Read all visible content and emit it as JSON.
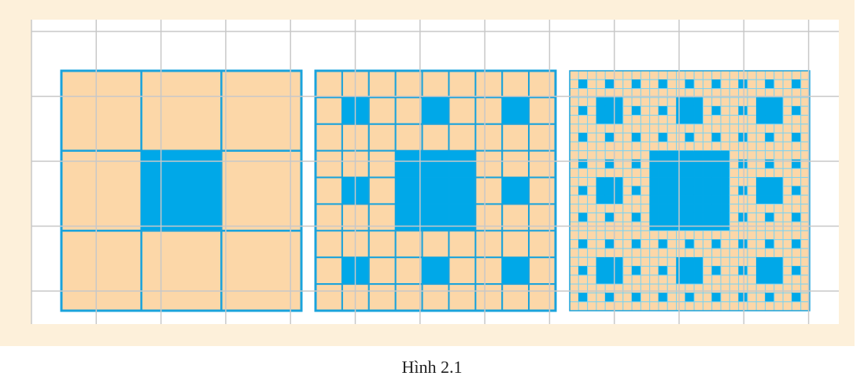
{
  "figure": {
    "caption": "Hình 2.1"
  }
}
